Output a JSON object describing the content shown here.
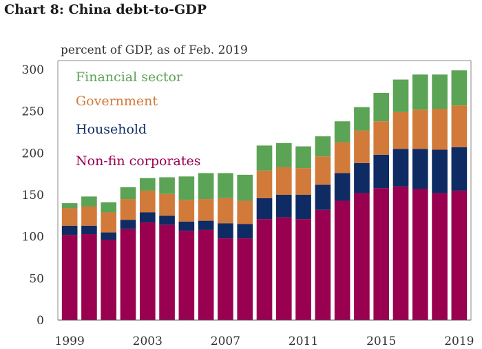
{
  "chart_data": {
    "type": "bar",
    "stacked": true,
    "title": "Chart 8: China debt-to-GDP",
    "subtitle": "percent of GDP, as of Feb. 2019",
    "xlabel": "",
    "ylabel": "",
    "ylim": [
      0,
      300
    ],
    "yticks": [
      0,
      50,
      100,
      150,
      200,
      250,
      300
    ],
    "xtick_labels": [
      "1999",
      "2003",
      "2007",
      "2011",
      "2015",
      "2019"
    ],
    "categories": [
      "1999",
      "2000",
      "2001",
      "2002",
      "2003",
      "2004",
      "2005",
      "2006",
      "2007",
      "2008",
      "2009",
      "2010",
      "2011",
      "2012",
      "2013",
      "2014",
      "2015",
      "2016",
      "2017",
      "2018",
      "2019"
    ],
    "grid": false,
    "legend_position": "top-left",
    "series": [
      {
        "name": "Non-fin corporates",
        "color": "#990050",
        "values": [
          102,
          103,
          96,
          109,
          117,
          114,
          107,
          108,
          98,
          98,
          121,
          123,
          121,
          132,
          143,
          152,
          158,
          160,
          157,
          152,
          155
        ]
      },
      {
        "name": "Household",
        "color": "#0f2b63",
        "values": [
          11,
          10,
          9,
          11,
          12,
          11,
          11,
          11,
          18,
          17,
          25,
          27,
          29,
          30,
          33,
          36,
          40,
          45,
          48,
          52,
          52
        ]
      },
      {
        "name": "Government",
        "color": "#d27a3a",
        "values": [
          21,
          23,
          24,
          25,
          26,
          26,
          26,
          26,
          30,
          28,
          33,
          33,
          32,
          34,
          37,
          39,
          40,
          44,
          47,
          49,
          50
        ]
      },
      {
        "name": "Financial sector",
        "color": "#5ba355",
        "values": [
          6,
          12,
          12,
          14,
          15,
          20,
          28,
          31,
          30,
          31,
          30,
          29,
          26,
          24,
          25,
          28,
          34,
          39,
          42,
          41,
          42
        ]
      }
    ]
  }
}
